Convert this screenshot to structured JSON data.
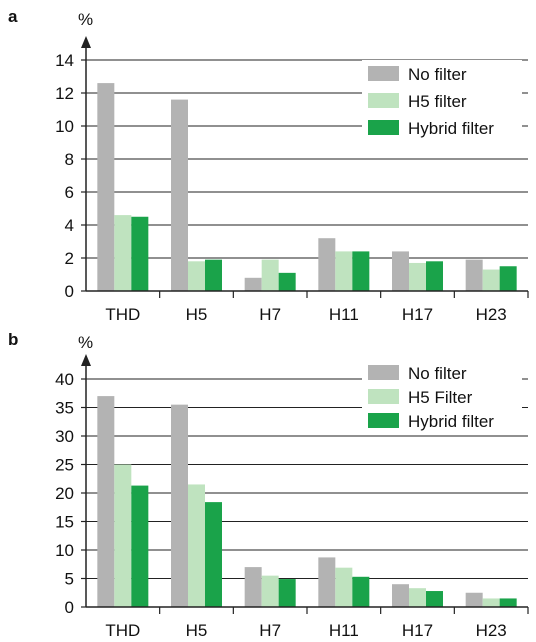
{
  "chart_data": [
    {
      "panel": "a",
      "type": "bar",
      "ylabel": "%",
      "ylim": [
        0,
        14
      ],
      "yticks": [
        0,
        2,
        4,
        6,
        8,
        10,
        12,
        14
      ],
      "categories": [
        "THD",
        "H5",
        "H7",
        "H11",
        "H17",
        "H23"
      ],
      "legend_position": "top-right",
      "grid": "horizontal",
      "series": [
        {
          "name": "No filter",
          "color": "#b3b3b3",
          "values": [
            12.6,
            11.6,
            0.8,
            3.2,
            2.4,
            1.9
          ]
        },
        {
          "name": "H5 filter",
          "color": "#bfe3bf",
          "values": [
            4.6,
            1.8,
            1.9,
            2.4,
            1.7,
            1.3
          ]
        },
        {
          "name": "Hybrid filter",
          "color": "#1aa34a",
          "values": [
            4.5,
            1.9,
            1.1,
            2.4,
            1.8,
            1.5
          ]
        }
      ]
    },
    {
      "panel": "b",
      "type": "bar",
      "ylabel": "%",
      "ylim": [
        0,
        40
      ],
      "yticks": [
        0,
        5,
        10,
        15,
        20,
        25,
        30,
        35,
        40
      ],
      "categories": [
        "THD",
        "H5",
        "H7",
        "H11",
        "H17",
        "H23"
      ],
      "legend_position": "top-right",
      "grid": "horizontal",
      "series": [
        {
          "name": "No filter",
          "color": "#b3b3b3",
          "values": [
            37.0,
            35.5,
            7.0,
            8.7,
            4.0,
            2.5
          ]
        },
        {
          "name": "H5 Filter",
          "color": "#bfe3bf",
          "values": [
            25.0,
            21.5,
            5.5,
            6.9,
            3.3,
            1.5
          ]
        },
        {
          "name": "Hybrid filter",
          "color": "#1aa34a",
          "values": [
            21.3,
            18.4,
            4.9,
            5.3,
            2.8,
            1.5
          ]
        }
      ]
    }
  ]
}
